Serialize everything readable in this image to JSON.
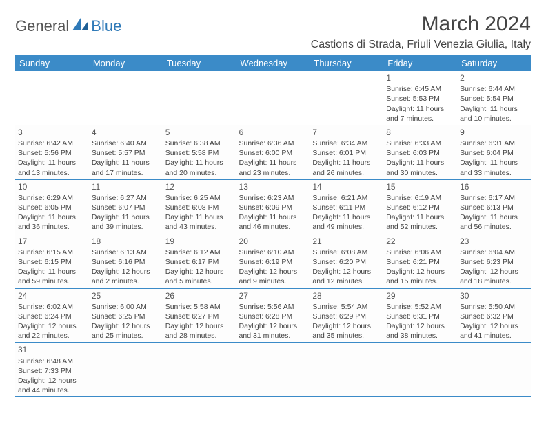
{
  "logo": {
    "part1": "General",
    "part2": "Blue"
  },
  "title": "March 2024",
  "location": "Castions di Strada, Friuli Venezia Giulia, Italy",
  "colors": {
    "header_bg": "#3b8bc8",
    "header_text": "#ffffff",
    "border": "#3b8bc8",
    "text": "#444444",
    "logo_gray": "#555555",
    "logo_blue": "#2f7ab8",
    "background": "#ffffff"
  },
  "typography": {
    "title_fontsize": 30,
    "location_fontsize": 16,
    "weekday_fontsize": 13,
    "cell_fontsize": 10.5,
    "daynum_fontsize": 12
  },
  "weekdays": [
    "Sunday",
    "Monday",
    "Tuesday",
    "Wednesday",
    "Thursday",
    "Friday",
    "Saturday"
  ],
  "weeks": [
    [
      null,
      null,
      null,
      null,
      null,
      {
        "day": "1",
        "sunrise": "6:45 AM",
        "sunset": "5:53 PM",
        "daylight": "11 hours and 7 minutes."
      },
      {
        "day": "2",
        "sunrise": "6:44 AM",
        "sunset": "5:54 PM",
        "daylight": "11 hours and 10 minutes."
      }
    ],
    [
      {
        "day": "3",
        "sunrise": "6:42 AM",
        "sunset": "5:56 PM",
        "daylight": "11 hours and 13 minutes."
      },
      {
        "day": "4",
        "sunrise": "6:40 AM",
        "sunset": "5:57 PM",
        "daylight": "11 hours and 17 minutes."
      },
      {
        "day": "5",
        "sunrise": "6:38 AM",
        "sunset": "5:58 PM",
        "daylight": "11 hours and 20 minutes."
      },
      {
        "day": "6",
        "sunrise": "6:36 AM",
        "sunset": "6:00 PM",
        "daylight": "11 hours and 23 minutes."
      },
      {
        "day": "7",
        "sunrise": "6:34 AM",
        "sunset": "6:01 PM",
        "daylight": "11 hours and 26 minutes."
      },
      {
        "day": "8",
        "sunrise": "6:33 AM",
        "sunset": "6:03 PM",
        "daylight": "11 hours and 30 minutes."
      },
      {
        "day": "9",
        "sunrise": "6:31 AM",
        "sunset": "6:04 PM",
        "daylight": "11 hours and 33 minutes."
      }
    ],
    [
      {
        "day": "10",
        "sunrise": "6:29 AM",
        "sunset": "6:05 PM",
        "daylight": "11 hours and 36 minutes."
      },
      {
        "day": "11",
        "sunrise": "6:27 AM",
        "sunset": "6:07 PM",
        "daylight": "11 hours and 39 minutes."
      },
      {
        "day": "12",
        "sunrise": "6:25 AM",
        "sunset": "6:08 PM",
        "daylight": "11 hours and 43 minutes."
      },
      {
        "day": "13",
        "sunrise": "6:23 AM",
        "sunset": "6:09 PM",
        "daylight": "11 hours and 46 minutes."
      },
      {
        "day": "14",
        "sunrise": "6:21 AM",
        "sunset": "6:11 PM",
        "daylight": "11 hours and 49 minutes."
      },
      {
        "day": "15",
        "sunrise": "6:19 AM",
        "sunset": "6:12 PM",
        "daylight": "11 hours and 52 minutes."
      },
      {
        "day": "16",
        "sunrise": "6:17 AM",
        "sunset": "6:13 PM",
        "daylight": "11 hours and 56 minutes."
      }
    ],
    [
      {
        "day": "17",
        "sunrise": "6:15 AM",
        "sunset": "6:15 PM",
        "daylight": "11 hours and 59 minutes."
      },
      {
        "day": "18",
        "sunrise": "6:13 AM",
        "sunset": "6:16 PM",
        "daylight": "12 hours and 2 minutes."
      },
      {
        "day": "19",
        "sunrise": "6:12 AM",
        "sunset": "6:17 PM",
        "daylight": "12 hours and 5 minutes."
      },
      {
        "day": "20",
        "sunrise": "6:10 AM",
        "sunset": "6:19 PM",
        "daylight": "12 hours and 9 minutes."
      },
      {
        "day": "21",
        "sunrise": "6:08 AM",
        "sunset": "6:20 PM",
        "daylight": "12 hours and 12 minutes."
      },
      {
        "day": "22",
        "sunrise": "6:06 AM",
        "sunset": "6:21 PM",
        "daylight": "12 hours and 15 minutes."
      },
      {
        "day": "23",
        "sunrise": "6:04 AM",
        "sunset": "6:23 PM",
        "daylight": "12 hours and 18 minutes."
      }
    ],
    [
      {
        "day": "24",
        "sunrise": "6:02 AM",
        "sunset": "6:24 PM",
        "daylight": "12 hours and 22 minutes."
      },
      {
        "day": "25",
        "sunrise": "6:00 AM",
        "sunset": "6:25 PM",
        "daylight": "12 hours and 25 minutes."
      },
      {
        "day": "26",
        "sunrise": "5:58 AM",
        "sunset": "6:27 PM",
        "daylight": "12 hours and 28 minutes."
      },
      {
        "day": "27",
        "sunrise": "5:56 AM",
        "sunset": "6:28 PM",
        "daylight": "12 hours and 31 minutes."
      },
      {
        "day": "28",
        "sunrise": "5:54 AM",
        "sunset": "6:29 PM",
        "daylight": "12 hours and 35 minutes."
      },
      {
        "day": "29",
        "sunrise": "5:52 AM",
        "sunset": "6:31 PM",
        "daylight": "12 hours and 38 minutes."
      },
      {
        "day": "30",
        "sunrise": "5:50 AM",
        "sunset": "6:32 PM",
        "daylight": "12 hours and 41 minutes."
      }
    ],
    [
      {
        "day": "31",
        "sunrise": "6:48 AM",
        "sunset": "7:33 PM",
        "daylight": "12 hours and 44 minutes."
      },
      null,
      null,
      null,
      null,
      null,
      null
    ]
  ]
}
